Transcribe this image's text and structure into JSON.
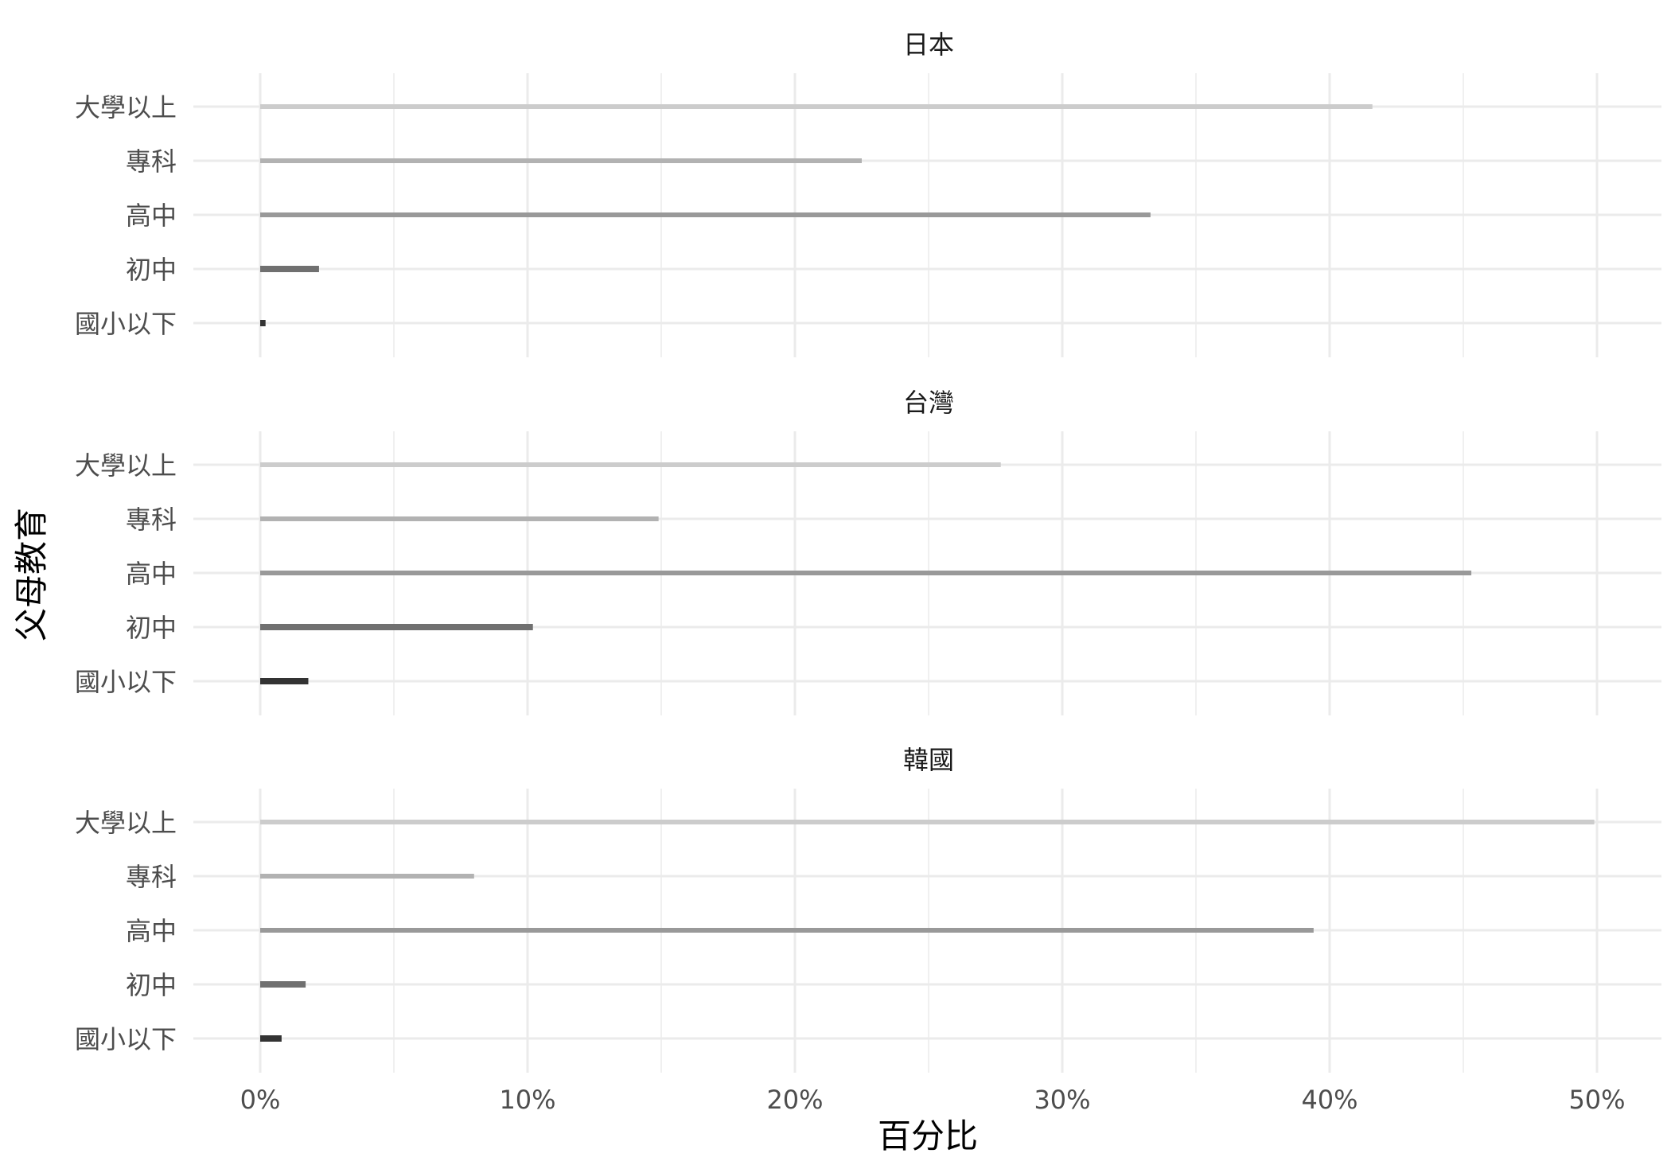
{
  "chart_data": {
    "type": "bar",
    "orientation": "horizontal",
    "xlabel": "百分比",
    "ylabel": "父母教育",
    "xlim": [
      -0.025,
      0.525
    ],
    "xticks": [
      {
        "value": 0.0,
        "label": "0%"
      },
      {
        "value": 0.1,
        "label": "10%"
      },
      {
        "value": 0.2,
        "label": "20%"
      },
      {
        "value": 0.3,
        "label": "30%"
      },
      {
        "value": 0.4,
        "label": "40%"
      },
      {
        "value": 0.5,
        "label": "50%"
      }
    ],
    "categories": [
      "大學以上",
      "專科",
      "高中",
      "初中",
      "國小以下"
    ],
    "category_colors": [
      "#cccccc",
      "#b2b2b2",
      "#999999",
      "#707070",
      "#333333"
    ],
    "grid": true,
    "legend": "none",
    "panels": [
      {
        "title": "日本",
        "values": [
          0.416,
          0.225,
          0.333,
          0.022,
          0.002
        ]
      },
      {
        "title": "台灣",
        "values": [
          0.277,
          0.149,
          0.453,
          0.102,
          0.018
        ]
      },
      {
        "title": "韓國",
        "values": [
          0.499,
          0.08,
          0.394,
          0.017,
          0.008
        ]
      }
    ]
  }
}
